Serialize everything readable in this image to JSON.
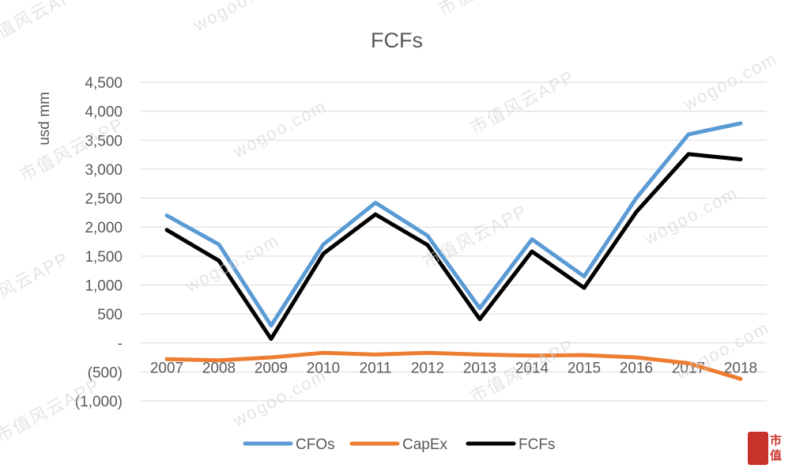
{
  "chart_data": {
    "type": "line",
    "title": "FCFs",
    "ylabel": "usd mm",
    "xlabel": "",
    "categories": [
      "2007",
      "2008",
      "2009",
      "2010",
      "2011",
      "2012",
      "2013",
      "2014",
      "2015",
      "2016",
      "2017",
      "2018"
    ],
    "ylim": [
      -1000,
      4500
    ],
    "yticks": [
      {
        "value": 4500,
        "label": "4,500"
      },
      {
        "value": 4000,
        "label": "4,000"
      },
      {
        "value": 3500,
        "label": "3,500"
      },
      {
        "value": 3000,
        "label": "3,000"
      },
      {
        "value": 2500,
        "label": "2,500"
      },
      {
        "value": 2000,
        "label": "2,000"
      },
      {
        "value": 1500,
        "label": "1,500"
      },
      {
        "value": 1000,
        "label": "1,000"
      },
      {
        "value": 500,
        "label": "500"
      },
      {
        "value": 0,
        "label": "-"
      },
      {
        "value": -500,
        "label": "(500)"
      },
      {
        "value": -1000,
        "label": "(1,000)"
      }
    ],
    "grid": true,
    "legend_position": "bottom",
    "series": [
      {
        "name": "CFOs",
        "color": "#5b9bd5",
        "values": [
          2200,
          1700,
          300,
          1700,
          2420,
          1850,
          600,
          1790,
          1150,
          2500,
          3600,
          3790
        ]
      },
      {
        "name": "CapEx",
        "color": "#ed7d31",
        "values": [
          -280,
          -300,
          -250,
          -170,
          -200,
          -170,
          -200,
          -220,
          -210,
          -250,
          -350,
          -620
        ]
      },
      {
        "name": "FCFs",
        "color": "#000000",
        "values": [
          1950,
          1420,
          70,
          1540,
          2220,
          1690,
          410,
          1580,
          950,
          2260,
          3260,
          3170
        ]
      }
    ]
  },
  "watermark": {
    "brand": "市值风云APP",
    "site": "wogoo.com"
  },
  "logo": {
    "text": "市值"
  }
}
